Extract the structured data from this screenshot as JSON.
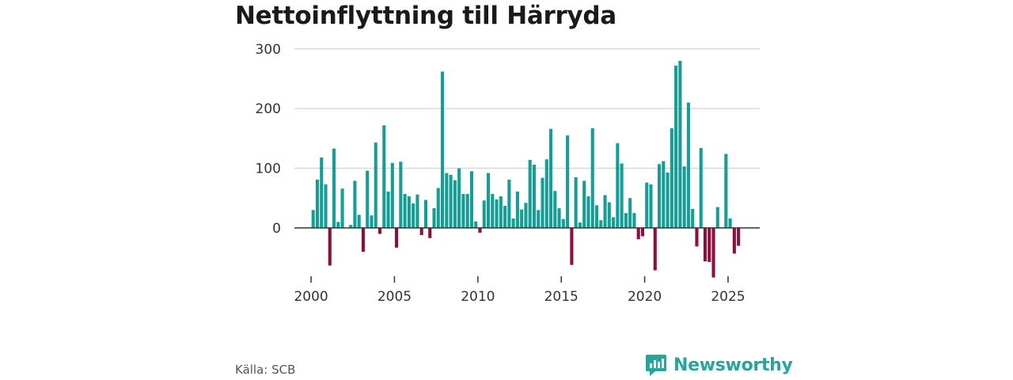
{
  "title": "Nettoinflyttning till Härryda",
  "source": "Källa: SCB",
  "brand": {
    "name": "Newsworthy",
    "icon": "newsworthy-logo-icon"
  },
  "colors": {
    "positive": "#169e96",
    "negative": "#8b0f3f",
    "grid": "#d9d9d9",
    "baseline": "#333333",
    "brand": "#26a69a"
  },
  "chart_data": {
    "type": "bar",
    "title": "Nettoinflyttning till Härryda",
    "xlabel": "",
    "ylabel": "",
    "ylim": [
      -85,
      305
    ],
    "xlim": [
      1999.0,
      2026.9
    ],
    "grid": true,
    "y_ticks": [
      0,
      100,
      200,
      300
    ],
    "x_ticks": [
      2000,
      2005,
      2010,
      2015,
      2020,
      2025
    ],
    "bars": [
      {
        "x": 2000.0,
        "y": 30
      },
      {
        "x": 2000.25,
        "y": 81
      },
      {
        "x": 2000.5,
        "y": 118
      },
      {
        "x": 2000.75,
        "y": 73
      },
      {
        "x": 2001.0,
        "y": -63
      },
      {
        "x": 2001.25,
        "y": 133
      },
      {
        "x": 2001.5,
        "y": 10
      },
      {
        "x": 2001.75,
        "y": 66
      },
      {
        "x": 2002.0,
        "y": 0
      },
      {
        "x": 2002.25,
        "y": 5
      },
      {
        "x": 2002.5,
        "y": 79
      },
      {
        "x": 2002.75,
        "y": 22
      },
      {
        "x": 2003.0,
        "y": -40
      },
      {
        "x": 2003.25,
        "y": 96
      },
      {
        "x": 2003.5,
        "y": 21
      },
      {
        "x": 2003.75,
        "y": 143
      },
      {
        "x": 2004.0,
        "y": -10
      },
      {
        "x": 2004.25,
        "y": 172
      },
      {
        "x": 2004.5,
        "y": 61
      },
      {
        "x": 2004.75,
        "y": 109
      },
      {
        "x": 2005.0,
        "y": -33
      },
      {
        "x": 2005.25,
        "y": 111
      },
      {
        "x": 2005.5,
        "y": 57
      },
      {
        "x": 2005.75,
        "y": 53
      },
      {
        "x": 2006.0,
        "y": 41
      },
      {
        "x": 2006.25,
        "y": 56
      },
      {
        "x": 2006.5,
        "y": -12
      },
      {
        "x": 2006.75,
        "y": 47
      },
      {
        "x": 2007.0,
        "y": -17
      },
      {
        "x": 2007.25,
        "y": 33
      },
      {
        "x": 2007.5,
        "y": 67
      },
      {
        "x": 2007.75,
        "y": 262
      },
      {
        "x": 2008.0,
        "y": 92
      },
      {
        "x": 2008.25,
        "y": 89
      },
      {
        "x": 2008.5,
        "y": 80
      },
      {
        "x": 2008.75,
        "y": 100
      },
      {
        "x": 2009.0,
        "y": 57
      },
      {
        "x": 2009.25,
        "y": 57
      },
      {
        "x": 2009.5,
        "y": 95
      },
      {
        "x": 2009.75,
        "y": 11
      },
      {
        "x": 2010.0,
        "y": -8
      },
      {
        "x": 2010.25,
        "y": 46
      },
      {
        "x": 2010.5,
        "y": 92
      },
      {
        "x": 2010.75,
        "y": 57
      },
      {
        "x": 2011.0,
        "y": 48
      },
      {
        "x": 2011.25,
        "y": 53
      },
      {
        "x": 2011.5,
        "y": 37
      },
      {
        "x": 2011.75,
        "y": 81
      },
      {
        "x": 2012.0,
        "y": 16
      },
      {
        "x": 2012.25,
        "y": 61
      },
      {
        "x": 2012.5,
        "y": 31
      },
      {
        "x": 2012.75,
        "y": 42
      },
      {
        "x": 2013.0,
        "y": 114
      },
      {
        "x": 2013.25,
        "y": 106
      },
      {
        "x": 2013.5,
        "y": 30
      },
      {
        "x": 2013.75,
        "y": 84
      },
      {
        "x": 2014.0,
        "y": 115
      },
      {
        "x": 2014.25,
        "y": 166
      },
      {
        "x": 2014.5,
        "y": 62
      },
      {
        "x": 2014.75,
        "y": 33
      },
      {
        "x": 2015.0,
        "y": 15
      },
      {
        "x": 2015.25,
        "y": 155
      },
      {
        "x": 2015.5,
        "y": -62
      },
      {
        "x": 2015.75,
        "y": 85
      },
      {
        "x": 2016.0,
        "y": 9
      },
      {
        "x": 2016.25,
        "y": 79
      },
      {
        "x": 2016.5,
        "y": 53
      },
      {
        "x": 2016.75,
        "y": 167
      },
      {
        "x": 2017.0,
        "y": 38
      },
      {
        "x": 2017.25,
        "y": 13
      },
      {
        "x": 2017.5,
        "y": 55
      },
      {
        "x": 2017.75,
        "y": 43
      },
      {
        "x": 2018.0,
        "y": 18
      },
      {
        "x": 2018.25,
        "y": 142
      },
      {
        "x": 2018.5,
        "y": 108
      },
      {
        "x": 2018.75,
        "y": 25
      },
      {
        "x": 2019.0,
        "y": 50
      },
      {
        "x": 2019.25,
        "y": 25
      },
      {
        "x": 2019.5,
        "y": -19
      },
      {
        "x": 2019.75,
        "y": -14
      },
      {
        "x": 2020.0,
        "y": 76
      },
      {
        "x": 2020.25,
        "y": 73
      },
      {
        "x": 2020.5,
        "y": -71
      },
      {
        "x": 2020.75,
        "y": 107
      },
      {
        "x": 2021.0,
        "y": 112
      },
      {
        "x": 2021.25,
        "y": 93
      },
      {
        "x": 2021.5,
        "y": 167
      },
      {
        "x": 2021.75,
        "y": 272
      },
      {
        "x": 2022.0,
        "y": 280
      },
      {
        "x": 2022.25,
        "y": 103
      },
      {
        "x": 2022.5,
        "y": 210
      },
      {
        "x": 2022.75,
        "y": 32
      },
      {
        "x": 2023.0,
        "y": -31
      },
      {
        "x": 2023.25,
        "y": 134
      },
      {
        "x": 2023.5,
        "y": -56
      },
      {
        "x": 2023.75,
        "y": -57
      },
      {
        "x": 2024.0,
        "y": -83
      },
      {
        "x": 2024.25,
        "y": 35
      },
      {
        "x": 2024.5,
        "y": 0
      },
      {
        "x": 2024.75,
        "y": 124
      },
      {
        "x": 2025.0,
        "y": 16
      },
      {
        "x": 2025.25,
        "y": -43
      },
      {
        "x": 2025.5,
        "y": -30
      }
    ]
  }
}
